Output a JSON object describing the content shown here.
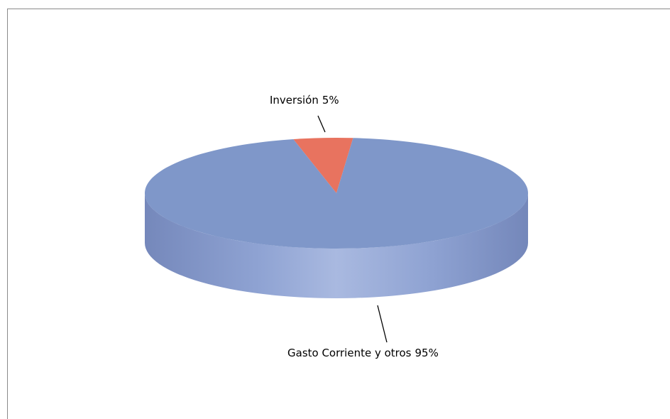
{
  "chart_data": {
    "type": "pie",
    "categories": [
      "Inversión",
      "Gasto Corriente y otros"
    ],
    "values": [
      5,
      95
    ],
    "value_labels": [
      "5%",
      "95%"
    ],
    "colors": [
      "#e8735f",
      "#7f97c9"
    ]
  }
}
